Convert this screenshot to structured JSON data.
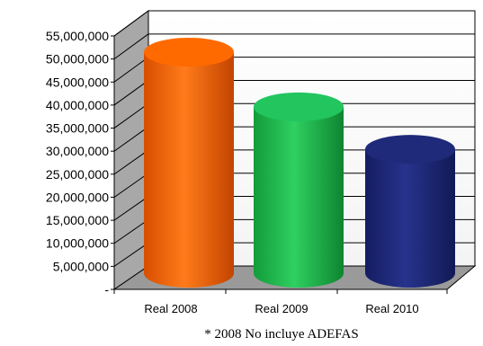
{
  "chart_data": {
    "type": "bar",
    "categories": [
      "Real 2008",
      "Real 2009",
      "Real 2010"
    ],
    "values": [
      50500000,
      38000000,
      28300000
    ],
    "colors": [
      "#ff6a00",
      "#22c55e",
      "#1f2a7a"
    ],
    "yticks": [
      "55,000,000",
      "50,000,000",
      "45,000,000",
      "40,000,000",
      "35,000,000",
      "30,000,000",
      "25,000,000",
      "20,000,000",
      "15,000,000",
      "10,000,000",
      "5,000,000",
      "-"
    ],
    "ylim": [
      0,
      55000000
    ],
    "grid": true,
    "footnote": "* 2008 No incluye ADEFAS"
  }
}
